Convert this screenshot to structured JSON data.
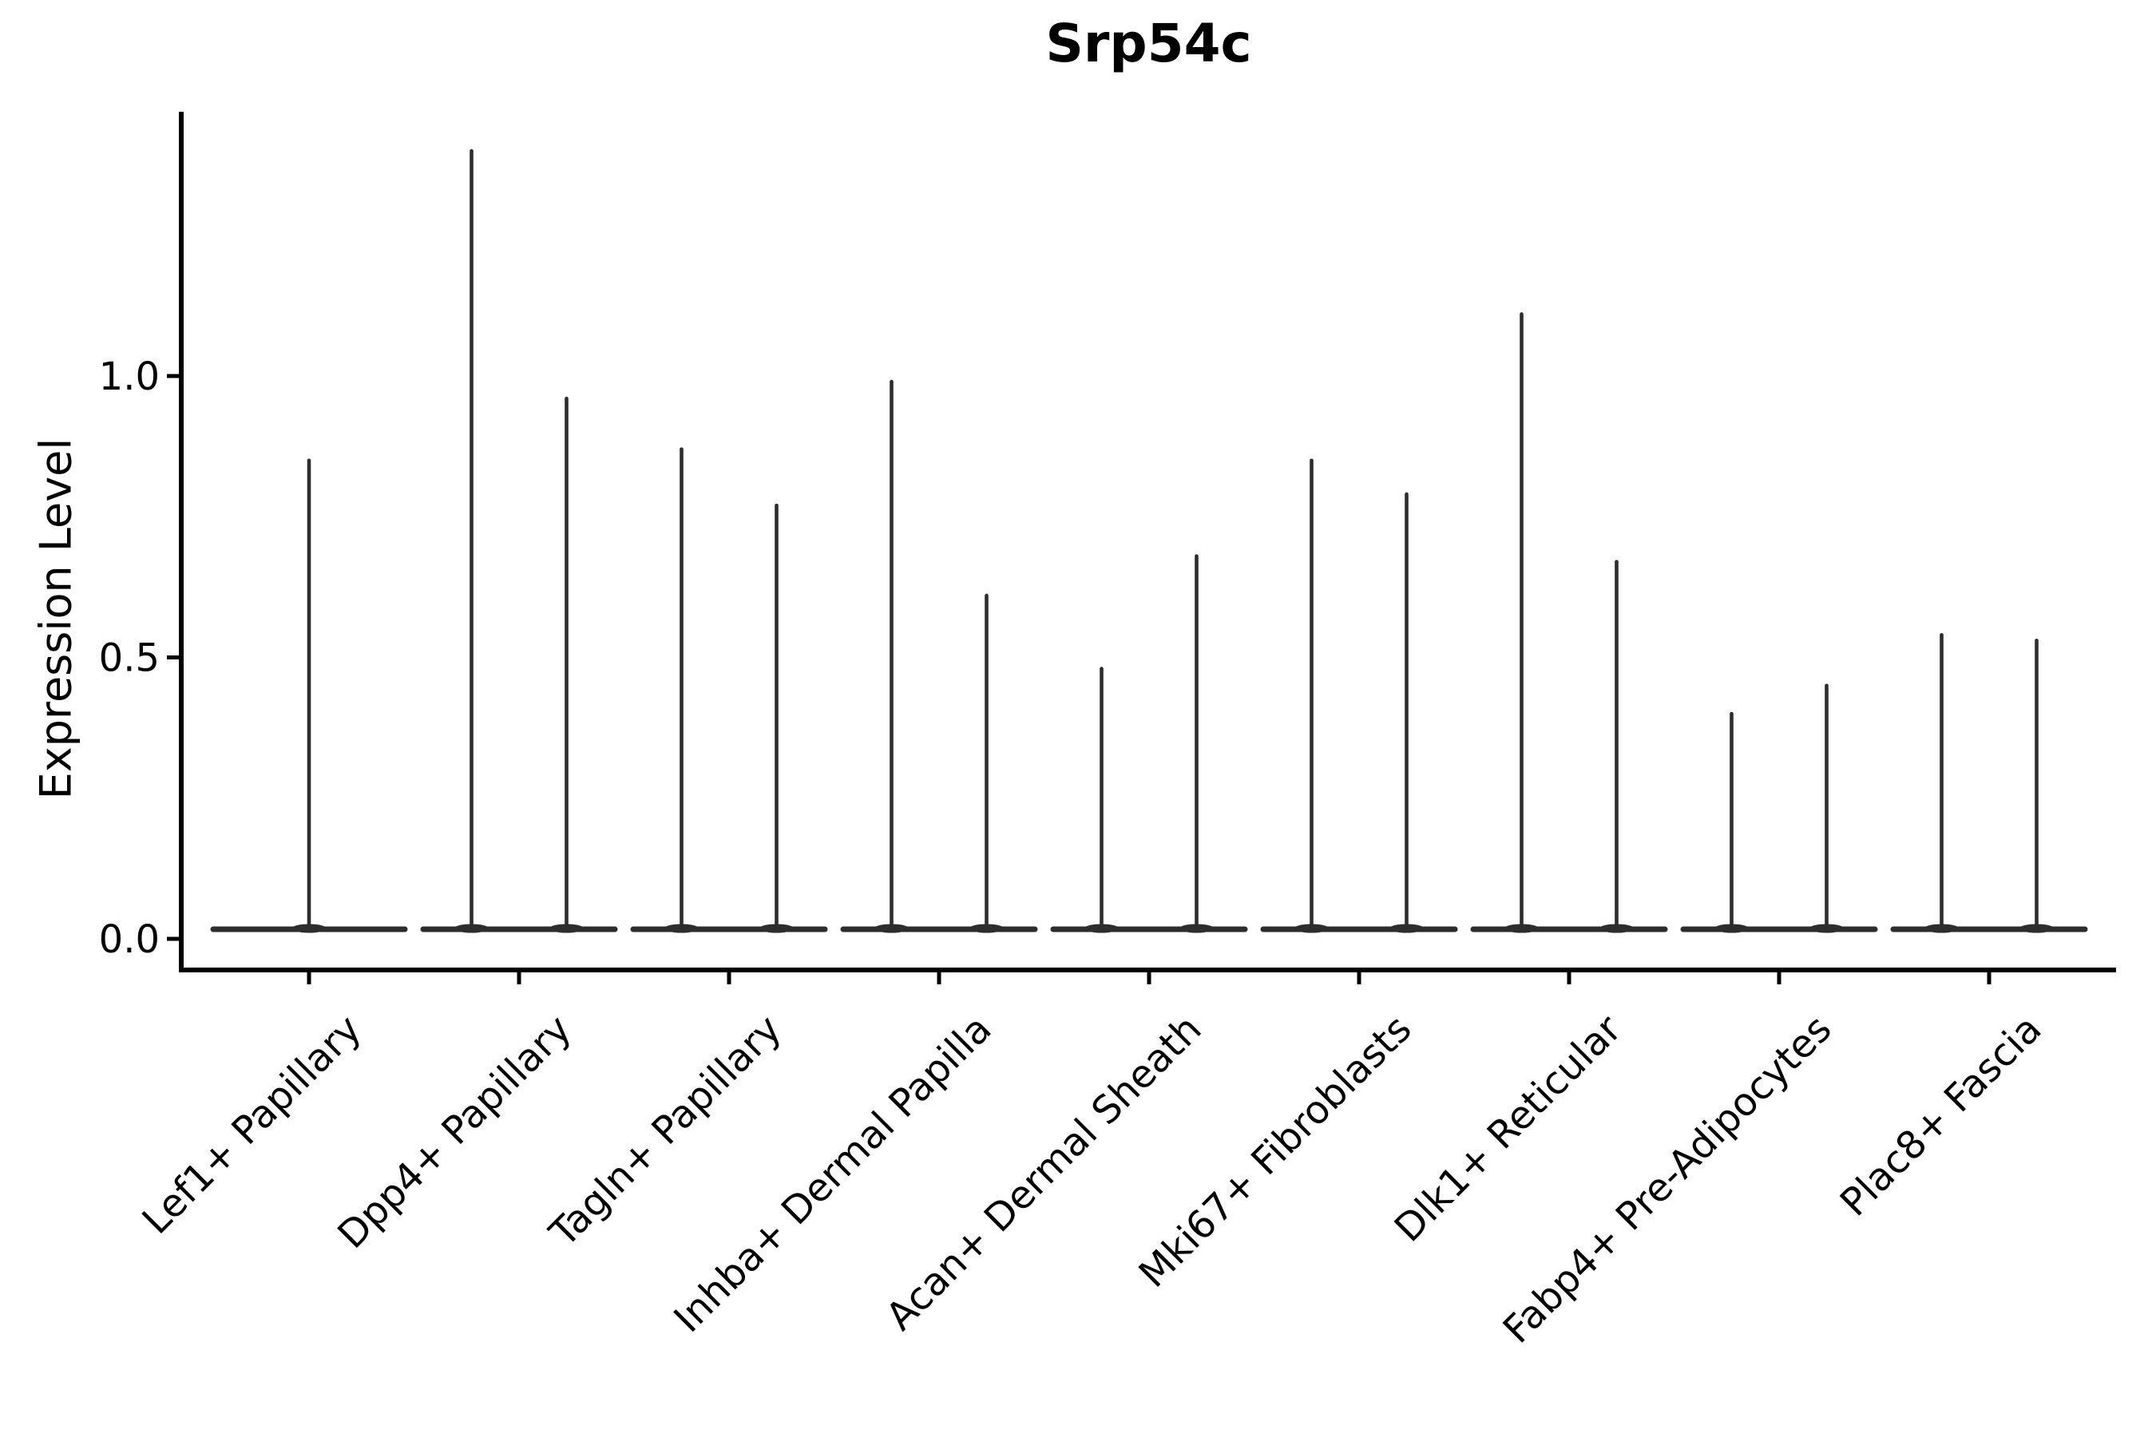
{
  "title": "Srp54c",
  "chart_data": {
    "type": "violin",
    "title": "Srp54c",
    "xlabel": "",
    "ylabel": "Expression Level",
    "ylim": [
      -0.06,
      1.47
    ],
    "grid": false,
    "legend": "none",
    "yticks": [
      {
        "label": "0.0",
        "value": 0.0
      },
      {
        "label": "0.5",
        "value": 0.5
      },
      {
        "label": "1.0",
        "value": 1.0
      }
    ],
    "categories": [
      "Lef1+ Papillary",
      "Dpp4+ Papillary",
      "Tagln+ Papillary",
      "Inhba+ Dermal Papilla",
      "Acan+ Dermal Sheath",
      "Mki67+ Fibroblasts",
      "Dlk1+ Reticular",
      "Fabp4+ Pre-Adipocytes",
      "Plac8+ Fascia"
    ],
    "groups": [
      {
        "category": "Lef1+ Papillary",
        "violin_maxima": [
          0.85
        ],
        "bulk_at": 0.0
      },
      {
        "category": "Dpp4+ Papillary",
        "violin_maxima": [
          1.4,
          0.96
        ],
        "bulk_at": 0.0
      },
      {
        "category": "Tagln+ Papillary",
        "violin_maxima": [
          0.87,
          0.77
        ],
        "bulk_at": 0.0
      },
      {
        "category": "Inhba+ Dermal Papilla",
        "violin_maxima": [
          0.99,
          0.61
        ],
        "bulk_at": 0.0
      },
      {
        "category": "Acan+ Dermal Sheath",
        "violin_maxima": [
          0.48,
          0.68
        ],
        "bulk_at": 0.0
      },
      {
        "category": "Mki67+ Fibroblasts",
        "violin_maxima": [
          0.85,
          0.79
        ],
        "bulk_at": 0.0
      },
      {
        "category": "Dlk1+ Reticular",
        "violin_maxima": [
          1.11,
          0.67
        ],
        "bulk_at": 0.0
      },
      {
        "category": "Fabp4+ Pre-Adipocytes",
        "violin_maxima": [
          0.4,
          0.45
        ],
        "bulk_at": 0.0
      },
      {
        "category": "Plac8+ Fascia",
        "violin_maxima": [
          0.54,
          0.53
        ],
        "bulk_at": 0.0
      }
    ],
    "colors": {
      "violin": "#2d2d2d",
      "axis": "#000000",
      "text": "#000000",
      "background": "#ffffff"
    }
  }
}
